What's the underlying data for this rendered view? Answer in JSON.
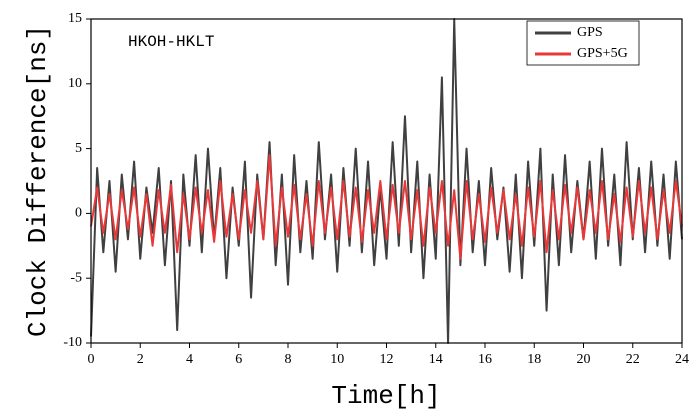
{
  "chart_data": {
    "type": "line",
    "annotation": "HKOH-HKLT",
    "x_label": "Time[h]",
    "y_label": "Clock Difference[ns]",
    "x": [
      0,
      0.25,
      0.5,
      0.75,
      1,
      1.25,
      1.5,
      1.75,
      2,
      2.25,
      2.5,
      2.75,
      3,
      3.25,
      3.5,
      3.75,
      4,
      4.25,
      4.5,
      4.75,
      5,
      5.25,
      5.5,
      5.75,
      6,
      6.25,
      6.5,
      6.75,
      7,
      7.25,
      7.5,
      7.75,
      8,
      8.25,
      8.5,
      8.75,
      9,
      9.25,
      9.5,
      9.75,
      10,
      10.25,
      10.5,
      10.75,
      11,
      11.25,
      11.5,
      11.75,
      12,
      12.25,
      12.5,
      12.75,
      13,
      13.25,
      13.5,
      13.75,
      14,
      14.25,
      14.5,
      14.75,
      15,
      15.25,
      15.5,
      15.75,
      16,
      16.25,
      16.5,
      16.75,
      17,
      17.25,
      17.5,
      17.75,
      18,
      18.25,
      18.5,
      18.75,
      19,
      19.25,
      19.5,
      19.75,
      20,
      20.25,
      20.5,
      20.75,
      21,
      21.25,
      21.5,
      21.75,
      22,
      22.25,
      22.5,
      22.75,
      23,
      23.25,
      23.5,
      23.75,
      24
    ],
    "series": [
      {
        "name": "GPS",
        "color": "#404040",
        "values": [
          -9.5,
          3.5,
          -3,
          2.5,
          -4.5,
          3,
          -2,
          4,
          -3.5,
          2,
          -1.5,
          3.5,
          -4,
          2.5,
          -9,
          3,
          -2.5,
          4.5,
          -3,
          5,
          -2,
          3.5,
          -5,
          2,
          -2.5,
          4,
          -6.5,
          3,
          -2,
          5.5,
          -4,
          3,
          -5.5,
          4.5,
          -3,
          2.5,
          -3.5,
          5.5,
          -2,
          3,
          -4.5,
          3.5,
          -2.5,
          5,
          -3,
          4,
          -4,
          2,
          -3.5,
          5.5,
          -2.5,
          7.5,
          -3,
          4,
          -5,
          3,
          -3.5,
          10.5,
          -10,
          15,
          -4,
          5,
          -3,
          2.5,
          -4,
          3.5,
          -2,
          2,
          -4.5,
          3,
          -5,
          4,
          -2.5,
          5,
          -7.5,
          3,
          -4,
          4.5,
          -3,
          2.5,
          -2,
          4,
          -3.5,
          5,
          -2.5,
          3,
          -4,
          5.5,
          -2,
          3.5,
          -3,
          4,
          -2.5,
          3,
          -3.5,
          4,
          -2
        ]
      },
      {
        "name": "GPS+5G",
        "color": "#e8393a",
        "values": [
          -1,
          2,
          -1.5,
          1.5,
          -2,
          1.8,
          -1.2,
          2,
          -1.8,
          1.5,
          -2.5,
          1.8,
          -1.5,
          2.2,
          -3,
          1.5,
          -2,
          2,
          -1.5,
          1.8,
          -2.2,
          2.5,
          -1.8,
          1.5,
          -2,
          1.8,
          -1.5,
          2.5,
          -2,
          4.5,
          -2.5,
          2,
          -1.8,
          2.2,
          -2,
          1.5,
          -2.5,
          2.5,
          -1.5,
          2,
          -2,
          2.5,
          -1.8,
          2,
          -2.2,
          1.8,
          -1.5,
          2.5,
          -2,
          2.2,
          -1.5,
          2.5,
          -2,
          1.8,
          -2.5,
          2,
          -1.5,
          2.5,
          -2.5,
          1.8,
          -3.5,
          2.5,
          -2,
          1.5,
          -2.2,
          2,
          -1.5,
          1.8,
          -2,
          1.5,
          -2.5,
          2,
          -1.8,
          2.5,
          -3,
          1.8,
          -2,
          2.2,
          -1.5,
          2,
          -2,
          1.8,
          -1.5,
          2.5,
          -2,
          1.5,
          -2.2,
          2,
          -1.8,
          2.5,
          -1.5,
          2,
          -2,
          1.8,
          -1.5,
          2.5,
          -1
        ]
      }
    ],
    "xlim": [
      0,
      24
    ],
    "xticks": [
      0,
      2,
      4,
      6,
      8,
      10,
      12,
      14,
      16,
      18,
      20,
      22,
      24
    ],
    "ylim": [
      -10,
      15
    ],
    "yticks": [
      -10,
      -5,
      0,
      5,
      10,
      15
    ],
    "legend": "top-right"
  }
}
